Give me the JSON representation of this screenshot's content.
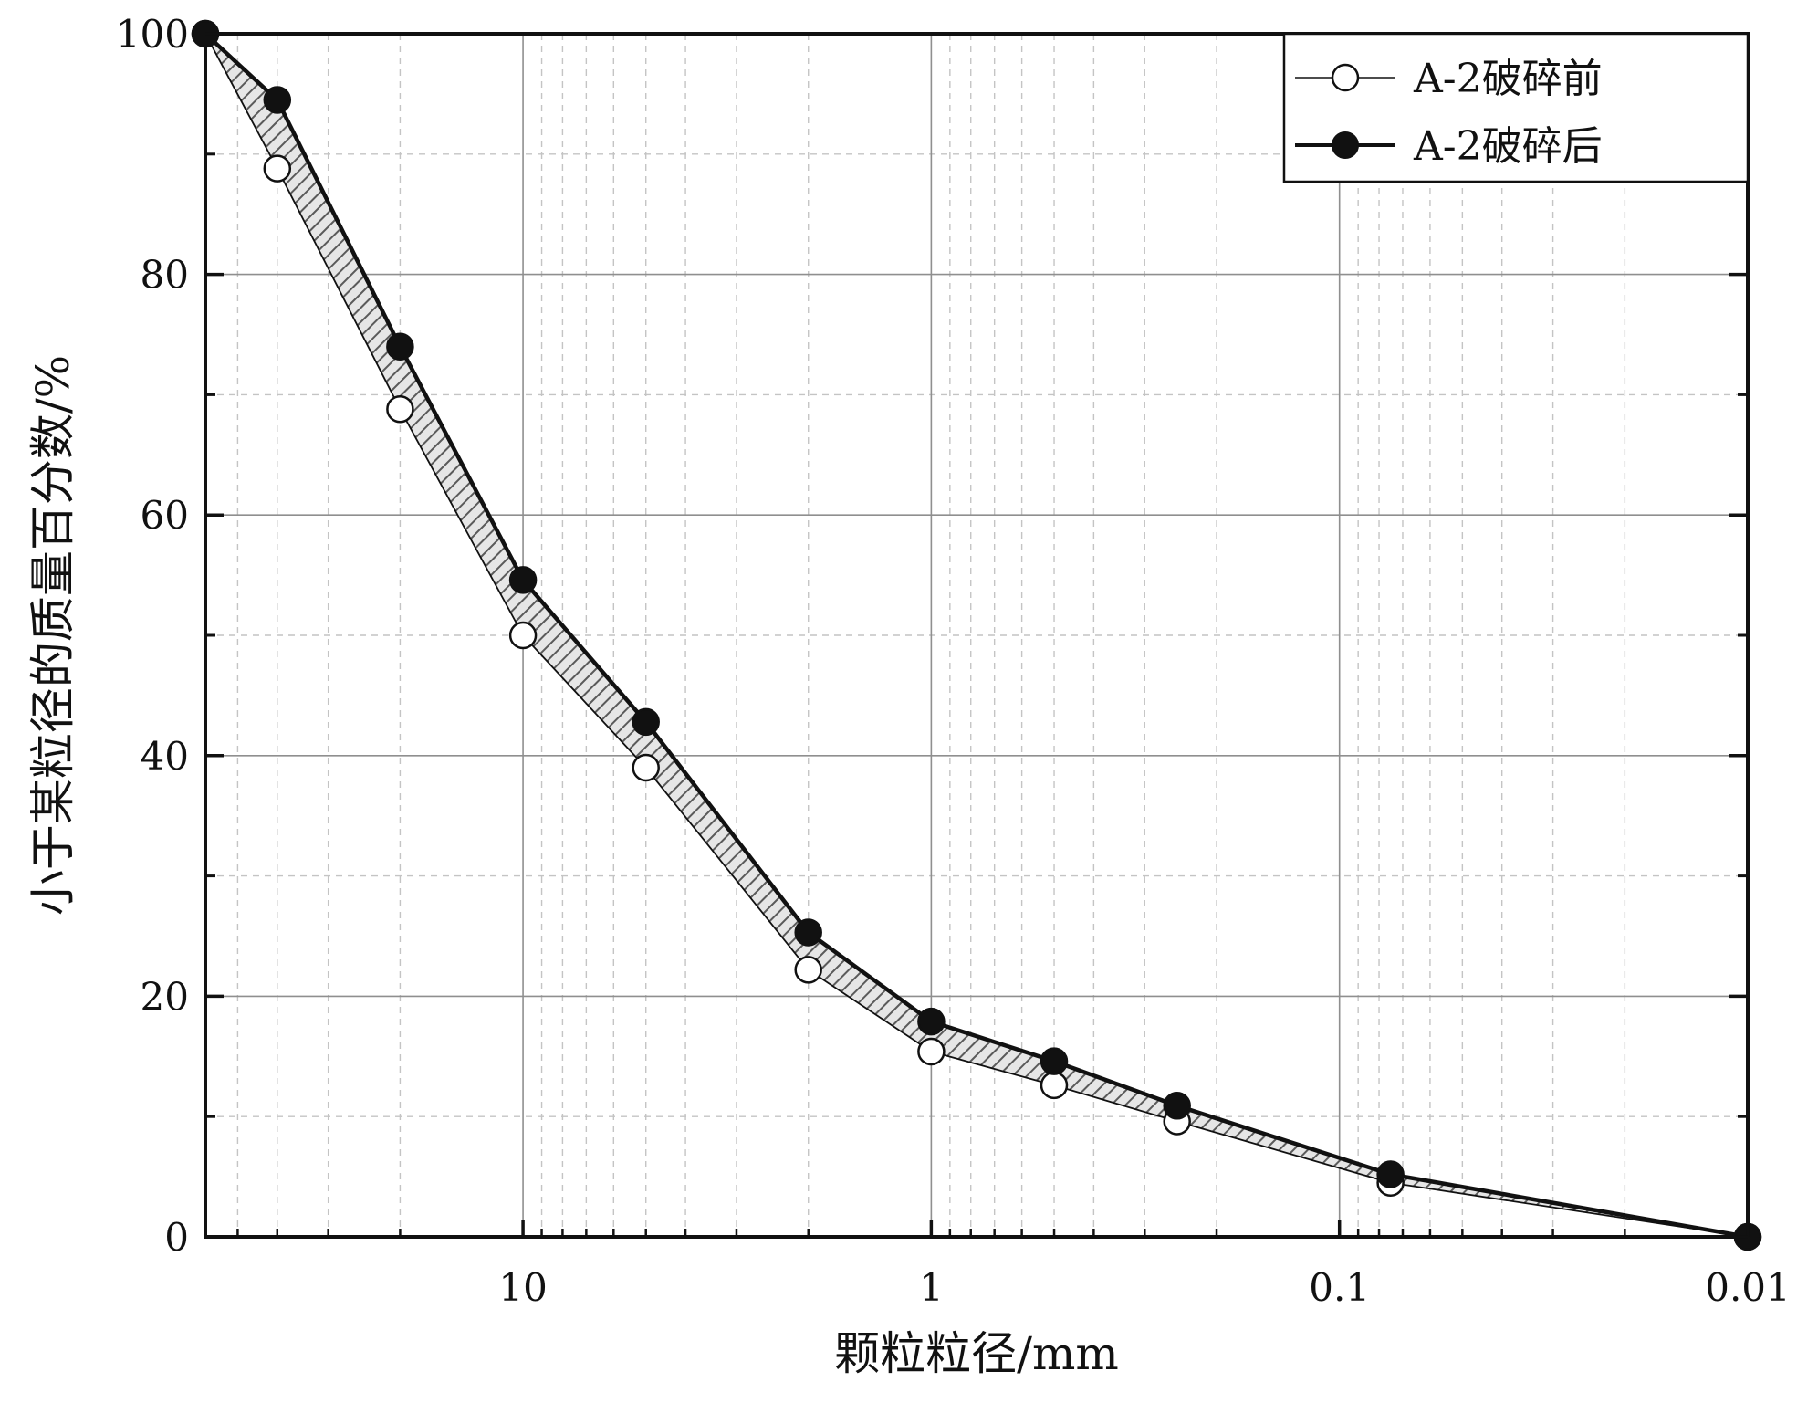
{
  "chart_data": {
    "type": "line",
    "xlabel": "颗粒粒径/mm",
    "ylabel": "小于某粒径的质量百分数/%",
    "x_scale": "log",
    "x_reversed": true,
    "xlim": [
      60,
      0.01
    ],
    "ylim": [
      0,
      100
    ],
    "x_tick_labels": [
      "10",
      "1",
      "0.1",
      "0.01"
    ],
    "x_tick_values": [
      10,
      1,
      0.1,
      0.01
    ],
    "y_tick_labels": [
      "0",
      "20",
      "40",
      "60",
      "80",
      "100"
    ],
    "y_tick_values": [
      0,
      20,
      40,
      60,
      80,
      100
    ],
    "grid": true,
    "legend_position": "top-right",
    "fill_between_series": "hatched",
    "x": [
      60,
      40,
      20,
      10,
      5,
      2,
      1,
      0.5,
      0.25,
      0.075,
      0.01
    ],
    "series": [
      {
        "name": "A-2破碎前",
        "marker": "open-circle",
        "line": "thin",
        "color": "#111111",
        "values": [
          100,
          88.8,
          68.8,
          50.0,
          39.0,
          22.2,
          15.4,
          12.6,
          9.6,
          4.5,
          0
        ]
      },
      {
        "name": "A-2破碎后",
        "marker": "filled-circle",
        "line": "thick",
        "color": "#111111",
        "values": [
          100,
          94.5,
          74.0,
          54.6,
          42.8,
          25.3,
          17.9,
          14.6,
          10.9,
          5.2,
          0
        ]
      }
    ]
  }
}
